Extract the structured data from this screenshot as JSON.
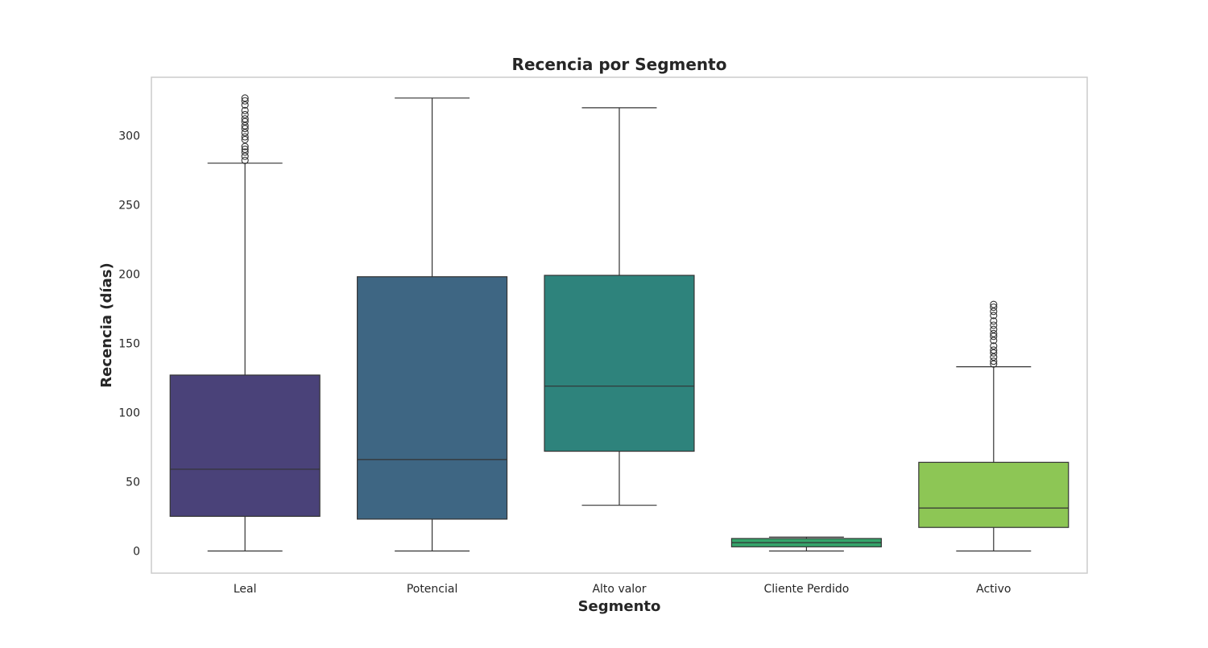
{
  "chart_data": {
    "type": "box",
    "title": "Recencia por Segmento",
    "xlabel": "Segmento",
    "ylabel": "Recencia (días)",
    "ylim": [
      -16,
      342
    ],
    "yticks": [
      0,
      50,
      100,
      150,
      200,
      250,
      300
    ],
    "grid": false,
    "categories": [
      "Leal",
      "Potencial",
      "Alto valor",
      "Cliente Perdido",
      "Activo"
    ],
    "boxes": [
      {
        "category": "Leal",
        "color": "#4a4279",
        "whisker_low": 0,
        "q1": 25,
        "median": 59,
        "q3": 127,
        "whisker_high": 280,
        "outliers": [
          282,
          285,
          288,
          290,
          292,
          297,
          299,
          302,
          305,
          307,
          310,
          312,
          315,
          318,
          322,
          325,
          327
        ]
      },
      {
        "category": "Potencial",
        "color": "#3e6683",
        "whisker_low": 0,
        "q1": 23,
        "median": 66,
        "q3": 198,
        "whisker_high": 327,
        "outliers": []
      },
      {
        "category": "Alto valor",
        "color": "#2e837c",
        "whisker_low": 33,
        "q1": 72,
        "median": 119,
        "q3": 199,
        "whisker_high": 320,
        "outliers": []
      },
      {
        "category": "Cliente Perdido",
        "color": "#35a46b",
        "whisker_low": 0,
        "q1": 3,
        "median": 6,
        "q3": 9,
        "whisker_high": 10,
        "outliers": []
      },
      {
        "category": "Activo",
        "color": "#8dc655",
        "whisker_low": 0,
        "q1": 17,
        "median": 31,
        "q3": 64,
        "whisker_high": 133,
        "outliers": [
          135,
          137,
          140,
          143,
          145,
          148,
          152,
          155,
          157,
          160,
          163,
          166,
          170,
          173,
          176,
          178
        ]
      }
    ]
  }
}
